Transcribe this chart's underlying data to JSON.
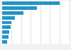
{
  "values": [
    1800,
    1100,
    680,
    400,
    300,
    260,
    220,
    190,
    160
  ],
  "bar_color": "#2196c8",
  "background_color": "#f2f2f2",
  "plot_bg_color": "#ffffff",
  "grid_color": "#cccccc",
  "bar_height": 0.72,
  "xlim_max": 2100
}
